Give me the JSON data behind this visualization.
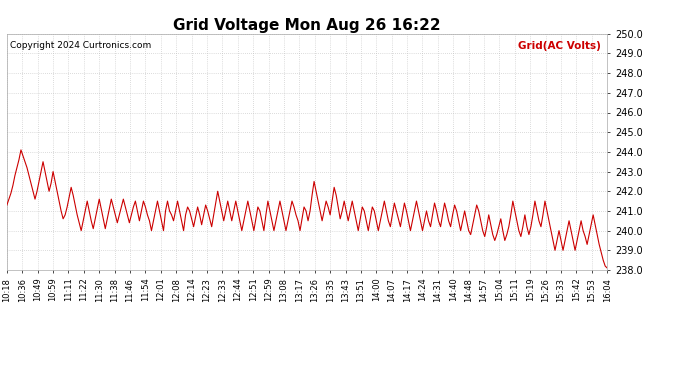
{
  "title": "Grid Voltage Mon Aug 26 16:22",
  "copyright": "Copyright 2024 Curtronics.com",
  "legend_label": "Grid(AC Volts)",
  "line_color": "#cc0000",
  "legend_color": "#cc0000",
  "copyright_color": "#000000",
  "background_color": "#ffffff",
  "grid_color": "#bbbbbb",
  "ylim": [
    238.0,
    250.0
  ],
  "yticks": [
    238.0,
    239.0,
    240.0,
    241.0,
    242.0,
    243.0,
    244.0,
    245.0,
    246.0,
    247.0,
    248.0,
    249.0,
    250.0
  ],
  "xtick_labels": [
    "10:18",
    "10:36",
    "10:49",
    "10:59",
    "11:11",
    "11:22",
    "11:30",
    "11:38",
    "11:46",
    "11:54",
    "12:01",
    "12:08",
    "12:14",
    "12:23",
    "12:33",
    "12:44",
    "12:51",
    "12:59",
    "13:08",
    "13:17",
    "13:26",
    "13:35",
    "13:43",
    "13:51",
    "14:00",
    "14:07",
    "14:17",
    "14:24",
    "14:31",
    "14:40",
    "14:48",
    "14:57",
    "15:04",
    "15:11",
    "15:19",
    "15:26",
    "15:33",
    "15:42",
    "15:53",
    "16:04"
  ],
  "y_values": [
    241.3,
    241.6,
    241.9,
    242.3,
    242.8,
    243.2,
    243.6,
    244.1,
    243.8,
    243.5,
    243.2,
    242.8,
    242.4,
    242.0,
    241.6,
    242.0,
    242.5,
    243.0,
    243.5,
    243.0,
    242.5,
    242.0,
    242.4,
    243.0,
    242.5,
    242.0,
    241.5,
    241.0,
    240.6,
    240.8,
    241.2,
    241.7,
    242.2,
    241.8,
    241.3,
    240.8,
    240.4,
    240.0,
    240.5,
    241.0,
    241.5,
    241.0,
    240.5,
    240.1,
    240.6,
    241.1,
    241.6,
    241.1,
    240.6,
    240.1,
    240.6,
    241.1,
    241.6,
    241.2,
    240.8,
    240.4,
    240.8,
    241.2,
    241.6,
    241.2,
    240.8,
    240.4,
    240.8,
    241.2,
    241.5,
    241.0,
    240.5,
    241.0,
    241.5,
    241.2,
    240.8,
    240.5,
    240.0,
    240.5,
    241.0,
    241.5,
    241.0,
    240.5,
    240.0,
    241.0,
    241.5,
    241.0,
    240.8,
    240.5,
    241.0,
    241.5,
    241.0,
    240.5,
    240.0,
    240.8,
    241.2,
    241.0,
    240.6,
    240.2,
    240.7,
    241.2,
    240.8,
    240.3,
    240.8,
    241.3,
    241.0,
    240.6,
    240.2,
    240.8,
    241.4,
    242.0,
    241.5,
    241.0,
    240.5,
    241.0,
    241.5,
    241.0,
    240.5,
    241.0,
    241.5,
    241.0,
    240.5,
    240.0,
    240.5,
    241.0,
    241.5,
    241.0,
    240.5,
    240.0,
    240.6,
    241.2,
    241.0,
    240.5,
    240.0,
    240.8,
    241.5,
    241.0,
    240.5,
    240.0,
    240.5,
    241.0,
    241.5,
    241.0,
    240.5,
    240.0,
    240.5,
    241.0,
    241.5,
    241.2,
    240.8,
    240.5,
    240.0,
    240.6,
    241.2,
    241.0,
    240.5,
    241.0,
    241.8,
    242.5,
    242.0,
    241.5,
    241.0,
    240.5,
    241.0,
    241.5,
    241.2,
    240.8,
    241.5,
    242.2,
    241.8,
    241.2,
    240.6,
    241.0,
    241.5,
    241.0,
    240.5,
    241.0,
    241.5,
    241.0,
    240.5,
    240.0,
    240.6,
    241.2,
    241.0,
    240.5,
    240.0,
    240.6,
    241.2,
    241.0,
    240.5,
    240.0,
    240.5,
    241.0,
    241.5,
    241.0,
    240.5,
    240.2,
    240.8,
    241.4,
    241.0,
    240.6,
    240.2,
    240.8,
    241.4,
    241.0,
    240.5,
    240.0,
    240.5,
    241.0,
    241.5,
    241.0,
    240.5,
    240.0,
    240.5,
    241.0,
    240.5,
    240.2,
    240.8,
    241.4,
    241.0,
    240.5,
    240.2,
    240.8,
    241.4,
    241.0,
    240.5,
    240.2,
    240.8,
    241.3,
    241.0,
    240.5,
    240.0,
    240.5,
    241.0,
    240.5,
    240.0,
    239.8,
    240.3,
    240.8,
    241.3,
    241.0,
    240.5,
    240.0,
    239.7,
    240.2,
    240.8,
    240.3,
    239.8,
    239.5,
    239.8,
    240.2,
    240.6,
    240.0,
    239.5,
    239.8,
    240.2,
    240.8,
    241.5,
    241.0,
    240.5,
    240.0,
    239.7,
    240.2,
    240.8,
    240.2,
    239.8,
    240.2,
    240.8,
    241.5,
    241.0,
    240.5,
    240.2,
    240.8,
    241.5,
    241.0,
    240.5,
    240.0,
    239.5,
    239.0,
    239.5,
    240.0,
    239.5,
    239.0,
    239.5,
    240.0,
    240.5,
    240.0,
    239.5,
    239.0,
    239.5,
    240.0,
    240.5,
    240.0,
    239.7,
    239.3,
    239.8,
    240.3,
    240.8,
    240.3,
    239.8,
    239.3,
    238.9,
    238.5,
    238.2,
    238.1
  ]
}
